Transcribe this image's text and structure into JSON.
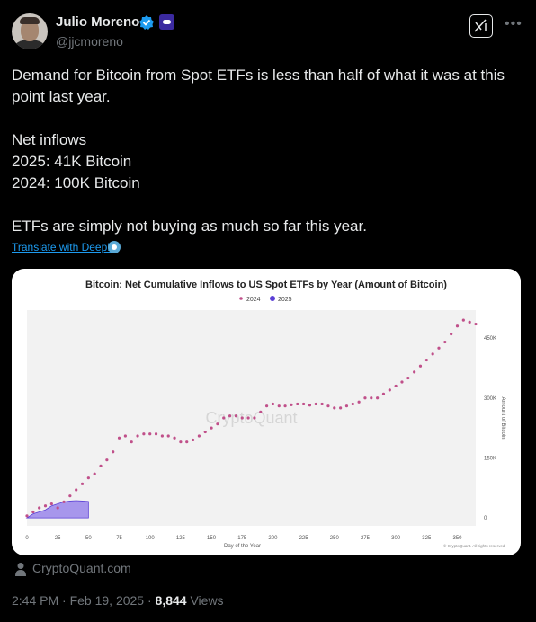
{
  "author": {
    "name": "Julio Moreno",
    "handle": "@jjcmoreno"
  },
  "tweet": {
    "line1": "Demand for Bitcoin from Spot ETFs is less than half of what it was at this",
    "line2": "point last year.",
    "line3": "Net inflows",
    "line4": "2025: 41K Bitcoin",
    "line5": "2024: 100K Bitcoin",
    "line6": "ETFs are simply not buying as much so far this year.",
    "translate_label": "Translate with DeepL"
  },
  "card_source": "CryptoQuant.com",
  "meta": {
    "time": "2:44 PM · Feb 19, 2025 · ",
    "views_count": "8,844",
    "views_label": " Views"
  },
  "colors": {
    "series_2024": "#c0508a",
    "series_2025": "#5b3fd6",
    "area_2025": "#a796ec",
    "plot_bg": "#f2f2f2"
  },
  "chart_data": {
    "type": "line",
    "title": "Bitcoin: Net Cumulative Inflows to US Spot ETFs by Year (Amount of Bitcoin)",
    "xlabel": "Day of the Year",
    "ylabel": "Amount of Bitcoin",
    "watermark": "CryptoQuant",
    "copyright": "© CryptoQuant. All rights reserved",
    "legend_position": "top-center",
    "xlim": [
      0,
      365
    ],
    "ylim": [
      -20000,
      520000
    ],
    "x_ticks": [
      0,
      25,
      50,
      75,
      100,
      125,
      150,
      175,
      200,
      225,
      250,
      275,
      300,
      325,
      350
    ],
    "y_ticks": [
      {
        "value": 0,
        "label": "0"
      },
      {
        "value": 150000,
        "label": "150K"
      },
      {
        "value": 300000,
        "label": "300K"
      },
      {
        "value": 450000,
        "label": "450K"
      }
    ],
    "series": [
      {
        "name": "2024",
        "style": "dots",
        "x": [
          0,
          5,
          10,
          15,
          20,
          25,
          30,
          35,
          40,
          45,
          50,
          55,
          60,
          65,
          70,
          75,
          80,
          85,
          90,
          95,
          100,
          105,
          110,
          115,
          120,
          125,
          130,
          135,
          140,
          145,
          150,
          155,
          160,
          165,
          170,
          175,
          180,
          185,
          190,
          195,
          200,
          205,
          210,
          215,
          220,
          225,
          230,
          235,
          240,
          245,
          250,
          255,
          260,
          265,
          270,
          275,
          280,
          285,
          290,
          295,
          300,
          305,
          310,
          315,
          320,
          325,
          330,
          335,
          340,
          345,
          350,
          355,
          360,
          365
        ],
        "values": [
          5000,
          15000,
          25000,
          30000,
          35000,
          25000,
          40000,
          55000,
          70000,
          85000,
          100000,
          110000,
          130000,
          145000,
          165000,
          200000,
          205000,
          190000,
          205000,
          210000,
          210000,
          210000,
          205000,
          205000,
          200000,
          190000,
          190000,
          195000,
          205000,
          215000,
          225000,
          235000,
          250000,
          255000,
          255000,
          250000,
          250000,
          250000,
          265000,
          280000,
          285000,
          280000,
          280000,
          283000,
          285000,
          285000,
          282000,
          285000,
          285000,
          280000,
          275000,
          275000,
          280000,
          285000,
          290000,
          300000,
          300000,
          300000,
          310000,
          320000,
          330000,
          340000,
          350000,
          365000,
          380000,
          395000,
          410000,
          425000,
          440000,
          460000,
          480000,
          495000,
          490000,
          485000
        ]
      },
      {
        "name": "2025",
        "style": "area",
        "x": [
          0,
          5,
          10,
          15,
          20,
          25,
          30,
          35,
          40,
          45,
          50
        ],
        "values": [
          0,
          10000,
          15000,
          20000,
          30000,
          35000,
          40000,
          42000,
          43000,
          42000,
          41000
        ]
      }
    ]
  }
}
